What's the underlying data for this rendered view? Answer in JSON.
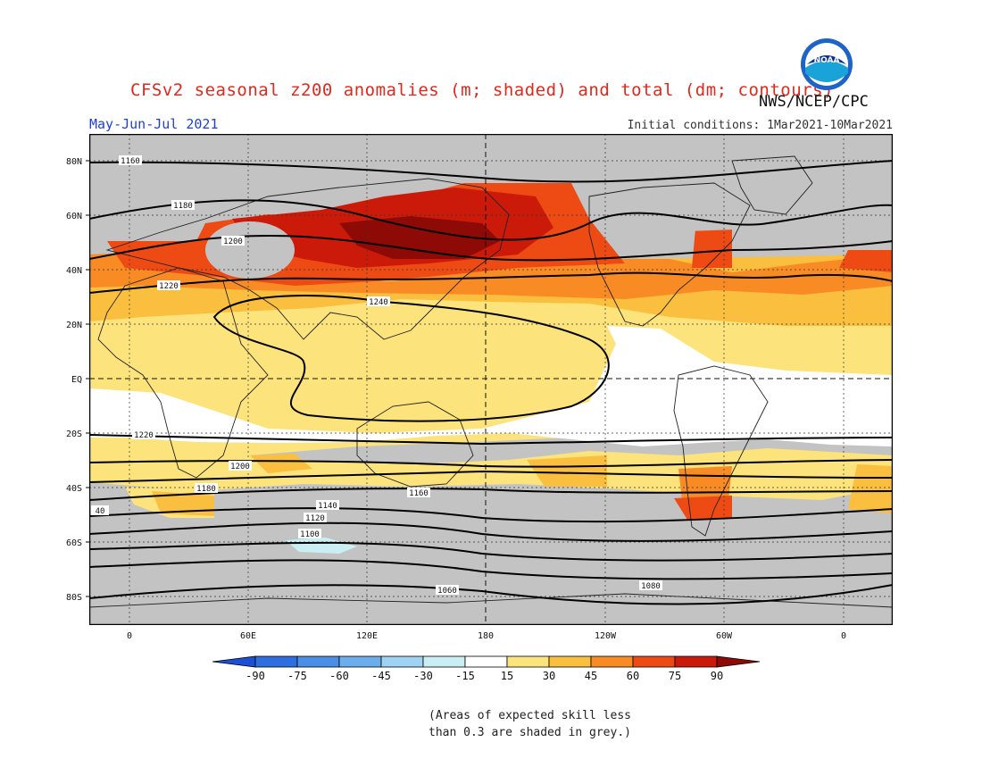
{
  "title": "CFSv2 seasonal z200 anomalies (m; shaded) and total (dm; contours)",
  "agency": "NWS/NCEP/CPC",
  "logo_text": "NOAA",
  "period": "May-Jun-Jul 2021",
  "initial_conditions": "Initial conditions: 1Mar2021-10Mar2021",
  "lat_labels": [
    "80N",
    "60N",
    "40N",
    "20N",
    "EQ",
    "20S",
    "40S",
    "60S",
    "80S"
  ],
  "lon_labels": [
    "0",
    "60E",
    "120E",
    "180",
    "120W",
    "60W",
    "0"
  ],
  "colorbar_ticks": [
    "-90",
    "-75",
    "-60",
    "-45",
    "-30",
    "-15",
    "15",
    "30",
    "45",
    "60",
    "75",
    "90"
  ],
  "colorbar_colors": [
    "#1a4fd6",
    "#2d6fe0",
    "#4a8ee8",
    "#6aaeee",
    "#9fd3f3",
    "#c9eff4",
    "#ffffff",
    "#fde37c",
    "#fbbf3f",
    "#f98b25",
    "#ee4a14",
    "#cc1a0a",
    "#8d0a06"
  ],
  "contour_labels": [
    "1160",
    "1180",
    "1200",
    "1220",
    "1240",
    "1220",
    "1200",
    "1180",
    "1160",
    "1140",
    "1120",
    "1100",
    "1080",
    "1060",
    "40"
  ],
  "note": [
    "(Areas of expected skill less",
    "than 0.3 are shaded in grey.)"
  ]
}
